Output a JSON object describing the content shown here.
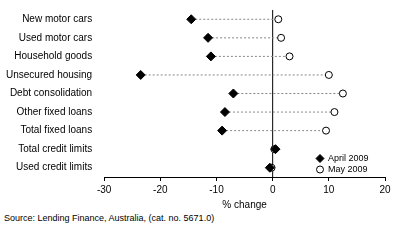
{
  "chart_data": {
    "type": "dot",
    "orientation": "horizontal",
    "x_label": "% change",
    "source": "Source: Lending Finance, Australia, (cat. no. 5671.0)",
    "categories": [
      "New motor cars",
      "Used motor cars",
      "Household goods",
      "Unsecured housing",
      "Debt consolidation",
      "Other fixed loans",
      "Total fixed loans",
      "Total credit limits",
      "Used credit limits"
    ],
    "series": [
      {
        "name": "April 2009",
        "color": "#000000",
        "marker": "diamond",
        "values": [
          -14.5,
          -11.5,
          -11,
          -23.5,
          -7,
          -8.5,
          -9,
          0.5,
          -0.5
        ]
      },
      {
        "name": "May 2009",
        "color": "#000000",
        "marker": "circle_open",
        "values": [
          1,
          1.5,
          3,
          10,
          12.5,
          11,
          9.5,
          0.3,
          -0.2
        ]
      }
    ],
    "xlim": [
      -30,
      20
    ],
    "xticks": [
      -30,
      -20,
      -10,
      0,
      10,
      20
    ],
    "grid": false,
    "legend": "bottom right",
    "line_style": "dashed"
  }
}
